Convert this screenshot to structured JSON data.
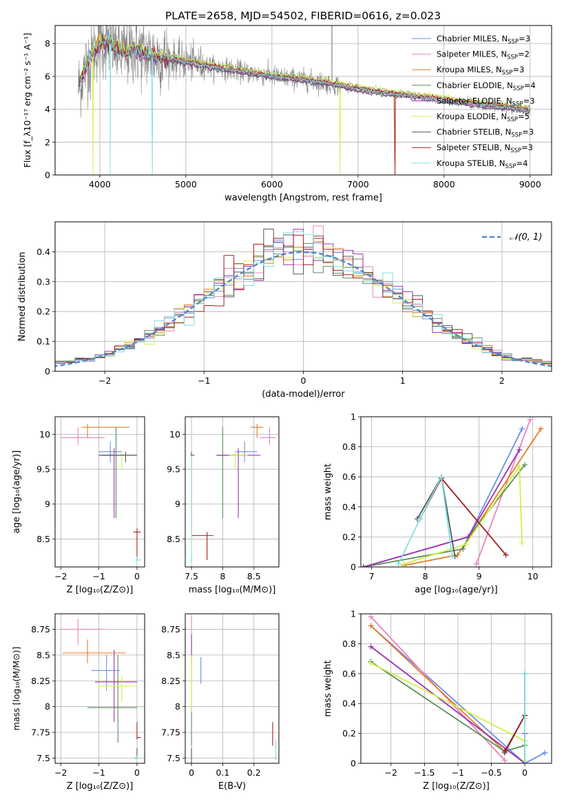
{
  "colors": [
    "#6b8fe6",
    "#e883bc",
    "#e07e22",
    "#5a8f5a",
    "#9c2fb0",
    "#d0ef4a",
    "#555555",
    "#a61c1c",
    "#7ddfe0"
  ],
  "chart_data": [
    {
      "id": "spectrum",
      "type": "line",
      "title": "PLATE=2658, MJD=54502, FIBERID=0616, z=0.023",
      "xlabel": "wavelength [Angstrom, rest frame]",
      "ylabel": "Flux [f_λ10⁻¹⁷ erg cm⁻² s⁻¹ A⁻¹]",
      "xlim": [
        3480,
        9250
      ],
      "ylim": [
        0,
        9.1
      ],
      "xticks": [
        4000,
        5000,
        6000,
        7000,
        8000,
        9000
      ],
      "yticks": [
        0,
        2,
        4,
        6,
        8
      ],
      "data_color": "#808080",
      "legend_position": "upper right",
      "legend": [
        "Chabrier MILES, N_SSP=3",
        "Salpeter MILES, N_SSP=2",
        "Kroupa MILES, N_SSP=3",
        "Chabrier ELODIE, N_SSP=4",
        "Salpeter ELODIE, N_SSP=3",
        "Kroupa ELODIE, N_SSP=5",
        "Chabrier STELIB, N_SSP=3",
        "Salpeter STELIB, N_SSP=3",
        "Kroupa STELIB, N_SSP=4"
      ],
      "continuum": [
        [
          3750,
          5.3
        ],
        [
          3850,
          6.8
        ],
        [
          3950,
          7.7
        ],
        [
          4000,
          8.0
        ],
        [
          4100,
          8.1
        ],
        [
          4200,
          7.6
        ],
        [
          4300,
          7.4
        ],
        [
          4400,
          7.7
        ],
        [
          4500,
          7.4
        ],
        [
          4700,
          7.2
        ],
        [
          4900,
          7.0
        ],
        [
          5100,
          6.8
        ],
        [
          5300,
          6.6
        ],
        [
          5500,
          6.45
        ],
        [
          5700,
          6.25
        ],
        [
          5900,
          6.1
        ],
        [
          6100,
          5.95
        ],
        [
          6300,
          5.85
        ],
        [
          6500,
          5.7
        ],
        [
          6700,
          5.55
        ],
        [
          6900,
          5.35
        ],
        [
          7100,
          5.15
        ],
        [
          7300,
          5.0
        ],
        [
          7500,
          4.9
        ],
        [
          7700,
          4.8
        ],
        [
          7900,
          4.65
        ],
        [
          8100,
          4.5
        ],
        [
          8300,
          4.35
        ],
        [
          8500,
          4.25
        ],
        [
          8700,
          4.15
        ],
        [
          8900,
          4.0
        ],
        [
          9000,
          3.95
        ]
      ]
    },
    {
      "id": "residuals",
      "type": "step",
      "xlabel": "(data-model)/error",
      "ylabel": "Normed distribution",
      "xlim": [
        -2.5,
        2.5
      ],
      "ylim": [
        0,
        0.5
      ],
      "xticks": [
        -2,
        -1,
        0,
        1,
        2
      ],
      "yticks": [
        0.0,
        0.1,
        0.2,
        0.3,
        0.4
      ],
      "bin_width": 0.1,
      "reference_curve": "N(0,1)",
      "reference_color": "#4f86cc",
      "legend_position": "upper right"
    },
    {
      "id": "age-vs-Z",
      "type": "errorbar",
      "xlabel": "Z [log₁₀(Z/Z⊙)]",
      "ylabel": "age  [log₁₀(age/yr)]",
      "xlim": [
        -2.15,
        0.2
      ],
      "ylim": [
        8.1,
        10.25
      ],
      "xticks": [
        -2,
        -1,
        0
      ],
      "yticks": [
        8.5,
        9.0,
        9.5,
        10.0
      ],
      "points": [
        {
          "c": 0,
          "x": -0.7,
          "y": 9.75,
          "xe": [
            -1.0,
            -0.4
          ],
          "ye": [
            9.6,
            9.9
          ]
        },
        {
          "c": 1,
          "x": -1.55,
          "y": 9.95,
          "xe": [
            -2.0,
            -0.85
          ],
          "ye": [
            9.85,
            10.1
          ]
        },
        {
          "c": 2,
          "x": -1.3,
          "y": 10.1,
          "xe": [
            -1.45,
            -0.2
          ],
          "ye": [
            9.95,
            10.15
          ]
        },
        {
          "c": 3,
          "x": -0.55,
          "y": 9.7,
          "xe": [
            -1.0,
            0.0
          ],
          "ye": [
            8.8,
            10.1
          ]
        },
        {
          "c": 4,
          "x": -0.6,
          "y": 9.7,
          "xe": [
            -0.9,
            -0.3
          ],
          "ye": [
            8.8,
            9.8
          ]
        },
        {
          "c": 5,
          "x": -0.4,
          "y": 9.7,
          "xe": [
            -0.6,
            -0.2
          ],
          "ye": [
            9.5,
            9.75
          ]
        },
        {
          "c": 6,
          "x": -0.3,
          "y": 9.7,
          "xe": [
            -1.0,
            0.0
          ],
          "ye": [
            9.6,
            9.75
          ]
        },
        {
          "c": 7,
          "x": 0.0,
          "y": 8.6,
          "xe": [
            -0.1,
            0.1
          ],
          "ye": [
            8.2,
            8.65
          ]
        },
        {
          "c": 8,
          "x": 0.0,
          "y": 8.2,
          "xe": [
            -0.05,
            0.1
          ],
          "ye": [
            8.15,
            8.25
          ]
        }
      ]
    },
    {
      "id": "age-vs-mass",
      "type": "errorbar",
      "xlabel": "mass [log₁₀(M/M⊙)]",
      "ylabel": "",
      "xlim": [
        7.4,
        8.9
      ],
      "ylim": [
        8.1,
        10.25
      ],
      "xticks": [
        7.5,
        8.0,
        8.5
      ],
      "yticks": [
        8.5,
        9.0,
        9.5,
        10.0
      ],
      "points": [
        {
          "c": 0,
          "x": 8.35,
          "y": 9.75,
          "xe": [
            8.2,
            8.55
          ],
          "ye": [
            9.6,
            9.9
          ]
        },
        {
          "c": 1,
          "x": 8.75,
          "y": 9.95,
          "xe": [
            8.6,
            8.85
          ],
          "ye": [
            9.85,
            10.1
          ]
        },
        {
          "c": 2,
          "x": 8.55,
          "y": 10.1,
          "xe": [
            8.45,
            8.65
          ],
          "ye": [
            9.95,
            10.15
          ]
        },
        {
          "c": 3,
          "x": 8.0,
          "y": 9.7,
          "xe": [
            7.9,
            8.2
          ],
          "ye": [
            8.8,
            10.1
          ]
        },
        {
          "c": 4,
          "x": 8.25,
          "y": 9.7,
          "xe": [
            7.9,
            8.6
          ],
          "ye": [
            8.8,
            9.8
          ]
        },
        {
          "c": 5,
          "x": 8.2,
          "y": 9.7,
          "xe": [
            8.1,
            8.4
          ],
          "ye": [
            9.5,
            9.75
          ]
        },
        {
          "c": 6,
          "x": 7.5,
          "y": 9.7,
          "xe": [
            7.48,
            7.55
          ],
          "ye": [
            8.6,
            9.75
          ]
        },
        {
          "c": 7,
          "x": 7.75,
          "y": 8.55,
          "xe": [
            7.5,
            7.85
          ],
          "ye": [
            8.2,
            8.6
          ]
        },
        {
          "c": 8,
          "x": 7.5,
          "y": 8.2,
          "xe": [
            7.48,
            7.52
          ],
          "ye": [
            8.15,
            9.7
          ]
        }
      ]
    },
    {
      "id": "weight-vs-age",
      "type": "line",
      "xlabel": "age  [log₁₀(age/yr)]",
      "ylabel": "mass weight",
      "xlim": [
        6.8,
        10.35
      ],
      "ylim": [
        0,
        1.0
      ],
      "xticks": [
        7,
        8,
        9,
        10
      ],
      "yticks": [
        0.0,
        0.2,
        0.4,
        0.6,
        0.8,
        1.0
      ],
      "series": [
        {
          "c": 0,
          "pts": [
            [
              6.85,
              0.0
            ],
            [
              8.8,
              0.2
            ],
            [
              9.8,
              0.92
            ]
          ]
        },
        {
          "c": 1,
          "pts": [
            [
              8.95,
              0.02
            ],
            [
              9.95,
              0.98
            ]
          ]
        },
        {
          "c": 2,
          "pts": [
            [
              7.6,
              0.01
            ],
            [
              8.6,
              0.08
            ],
            [
              10.15,
              0.92
            ]
          ]
        },
        {
          "c": 3,
          "pts": [
            [
              6.85,
              0.0
            ],
            [
              8.7,
              0.12
            ],
            [
              8.8,
              0.2
            ],
            [
              9.85,
              0.68
            ]
          ]
        },
        {
          "c": 4,
          "pts": [
            [
              6.85,
              0.0
            ],
            [
              8.8,
              0.2
            ],
            [
              9.75,
              0.78
            ]
          ]
        },
        {
          "c": 5,
          "pts": [
            [
              7.6,
              0.02
            ],
            [
              8.75,
              0.15
            ],
            [
              9.75,
              0.67
            ],
            [
              9.8,
              0.16
            ]
          ]
        },
        {
          "c": 6,
          "pts": [
            [
              7.85,
              0.32
            ],
            [
              8.3,
              0.6
            ],
            [
              8.55,
              0.07
            ]
          ]
        },
        {
          "c": 7,
          "pts": [
            [
              7.9,
              0.32
            ],
            [
              8.3,
              0.59
            ],
            [
              9.5,
              0.08
            ]
          ]
        },
        {
          "c": 8,
          "pts": [
            [
              7.5,
              0.02
            ],
            [
              7.9,
              0.32
            ],
            [
              8.3,
              0.6
            ],
            [
              8.5,
              0.07
            ]
          ]
        }
      ]
    },
    {
      "id": "mass-vs-Z",
      "type": "errorbar",
      "xlabel": "Z [log₁₀(Z/Z⊙)]",
      "ylabel": "mass [log₁₀(M/M⊙)]",
      "xlim": [
        -2.15,
        0.2
      ],
      "ylim": [
        7.45,
        8.9
      ],
      "xticks": [
        -2,
        -1,
        0
      ],
      "yticks": [
        7.5,
        7.75,
        8.0,
        8.25,
        8.5,
        8.75
      ],
      "points": [
        {
          "c": 0,
          "x": -0.8,
          "y": 8.35,
          "xe": [
            -1.2,
            -0.45
          ],
          "ye": [
            8.15,
            8.5
          ]
        },
        {
          "c": 1,
          "x": -1.55,
          "y": 8.75,
          "xe": [
            -2.0,
            -0.85
          ],
          "ye": [
            8.6,
            8.85
          ]
        },
        {
          "c": 2,
          "x": -1.3,
          "y": 8.52,
          "xe": [
            -1.95,
            -0.3
          ],
          "ye": [
            8.42,
            8.65
          ]
        },
        {
          "c": 3,
          "x": -0.5,
          "y": 7.99,
          "xe": [
            -1.3,
            0.0
          ],
          "ye": [
            7.65,
            8.5
          ]
        },
        {
          "c": 4,
          "x": -0.6,
          "y": 8.24,
          "xe": [
            -1.1,
            0.0
          ],
          "ye": [
            7.85,
            8.55
          ]
        },
        {
          "c": 5,
          "x": -0.4,
          "y": 8.2,
          "xe": [
            -1.0,
            0.0
          ],
          "ye": [
            8.05,
            8.3
          ]
        },
        {
          "c": 6,
          "x": 0.0,
          "y": 7.5,
          "xe": [
            -0.05,
            0.05
          ],
          "ye": [
            7.5,
            7.6
          ]
        },
        {
          "c": 7,
          "x": 0.0,
          "y": 7.7,
          "xe": [
            0.0,
            0.1
          ],
          "ye": [
            7.68,
            7.85
          ]
        },
        {
          "c": 8,
          "x": 0.0,
          "y": 7.5,
          "xe": [
            0.0,
            0.1
          ],
          "ye": [
            7.48,
            7.52
          ]
        }
      ]
    },
    {
      "id": "mass-vs-ebv",
      "type": "errorbar",
      "xlabel": "E(B-V)",
      "ylabel": "",
      "xlim": [
        -0.02,
        0.28
      ],
      "ylim": [
        7.45,
        8.9
      ],
      "xticks": [
        0.0,
        0.1,
        0.2
      ],
      "yticks": [
        7.5,
        7.75,
        8.0,
        8.25,
        8.5,
        8.75
      ],
      "points": [
        {
          "c": 0,
          "x": 0.03,
          "y": 8.35,
          "xe": [
            0.03,
            0.03
          ],
          "ye": [
            8.22,
            8.48
          ]
        },
        {
          "c": 1,
          "x": 0.0,
          "y": 8.75,
          "xe": [
            0.0,
            0.0
          ],
          "ye": [
            8.6,
            8.88
          ]
        },
        {
          "c": 2,
          "x": 0.0,
          "y": 8.52,
          "xe": [
            0.0,
            0.0
          ],
          "ye": [
            8.42,
            8.62
          ]
        },
        {
          "c": 3,
          "x": 0.0,
          "y": 7.9,
          "xe": [
            0.0,
            0.0
          ],
          "ye": [
            7.62,
            8.3
          ]
        },
        {
          "c": 4,
          "x": 0.0,
          "y": 8.5,
          "xe": [
            0.0,
            0.0
          ],
          "ye": [
            8.3,
            8.7
          ]
        },
        {
          "c": 5,
          "x": 0.0,
          "y": 8.2,
          "xe": [
            0.0,
            0.0
          ],
          "ye": [
            7.95,
            8.5
          ]
        },
        {
          "c": 6,
          "x": 0.0,
          "y": 7.5,
          "xe": [
            0.0,
            0.0
          ],
          "ye": [
            7.45,
            7.6
          ]
        },
        {
          "c": 7,
          "x": 0.26,
          "y": 7.75,
          "xe": [
            0.26,
            0.26
          ],
          "ye": [
            7.62,
            7.85
          ]
        },
        {
          "c": 8,
          "x": 0.27,
          "y": 7.55,
          "xe": [
            0.27,
            0.27
          ],
          "ye": [
            7.48,
            7.68
          ]
        }
      ]
    },
    {
      "id": "weight-vs-Z",
      "type": "line",
      "xlabel": "Z [log₁₀(Z/Z⊙)]",
      "ylabel": "mass weight",
      "xlim": [
        -2.45,
        0.4
      ],
      "ylim": [
        0,
        1.0
      ],
      "xticks": [
        -2.0,
        -1.5,
        -1.0,
        -0.5,
        0.0
      ],
      "yticks": [
        0.0,
        0.2,
        0.4,
        0.6,
        0.8,
        1.0
      ],
      "series": [
        {
          "c": 0,
          "pts": [
            [
              -2.3,
              0.92
            ],
            [
              0.0,
              0.0
            ],
            [
              0.3,
              0.07
            ]
          ]
        },
        {
          "c": 1,
          "pts": [
            [
              -2.3,
              0.98
            ],
            [
              -0.3,
              0.02
            ]
          ]
        },
        {
          "c": 2,
          "pts": [
            [
              -2.3,
              0.92
            ],
            [
              -0.3,
              0.08
            ]
          ]
        },
        {
          "c": 3,
          "pts": [
            [
              -2.3,
              0.68
            ],
            [
              -0.3,
              0.08
            ],
            [
              0.0,
              0.12
            ],
            [
              0.0,
              0.2
            ]
          ]
        },
        {
          "c": 4,
          "pts": [
            [
              -2.3,
              0.78
            ],
            [
              0.0,
              0.0
            ],
            [
              0.0,
              0.2
            ]
          ]
        },
        {
          "c": 5,
          "pts": [
            [
              -2.3,
              0.67
            ],
            [
              0.0,
              0.15
            ],
            [
              0.0,
              0.02
            ]
          ]
        },
        {
          "c": 6,
          "pts": [
            [
              -0.3,
              0.07
            ],
            [
              0.0,
              0.32
            ],
            [
              0.0,
              0.6
            ]
          ]
        },
        {
          "c": 7,
          "pts": [
            [
              -0.3,
              0.08
            ],
            [
              0.0,
              0.32
            ]
          ]
        },
        {
          "c": 8,
          "pts": [
            [
              0.0,
              0.0
            ],
            [
              0.0,
              0.6
            ],
            [
              0.0,
              0.3
            ]
          ]
        }
      ]
    }
  ]
}
